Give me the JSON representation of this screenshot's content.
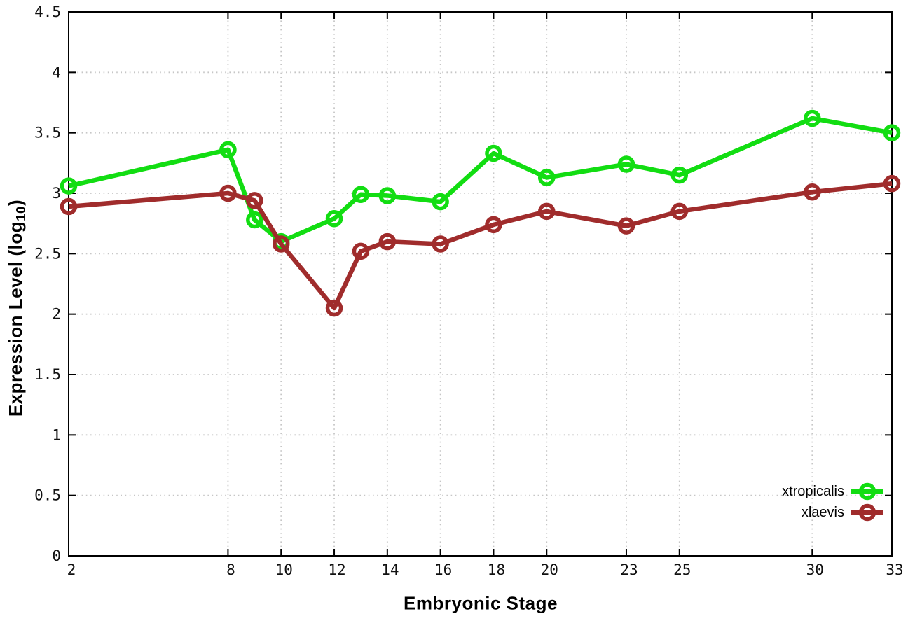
{
  "axes": {
    "xlabel": "Embryonic Stage",
    "ylabel_prefix": "Expression Level (log",
    "ylabel_sub": "10",
    "ylabel_suffix": ")"
  },
  "chart_data": {
    "type": "line",
    "title": "",
    "x": [
      2,
      8,
      9,
      10,
      12,
      13,
      14,
      16,
      18,
      20,
      23,
      25,
      30,
      33
    ],
    "series": [
      {
        "name": "xtropicalis",
        "color": "#12dd12",
        "values": [
          3.06,
          3.36,
          2.78,
          2.6,
          2.79,
          2.99,
          2.98,
          2.93,
          3.33,
          3.13,
          3.24,
          3.15,
          3.62,
          3.5
        ]
      },
      {
        "name": "xlaevis",
        "color": "#a02c2c",
        "values": [
          2.89,
          3.0,
          2.94,
          2.58,
          2.05,
          2.52,
          2.6,
          2.58,
          2.74,
          2.85,
          2.73,
          2.85,
          3.01,
          3.08
        ]
      }
    ],
    "xlabel": "Embryonic Stage",
    "ylabel": "Expression Level (log10)",
    "xlim": [
      2,
      33
    ],
    "ylim": [
      0,
      4.5
    ],
    "xticks": [
      2,
      8,
      10,
      12,
      14,
      16,
      18,
      20,
      23,
      25,
      30,
      33
    ],
    "yticks": [
      0,
      0.5,
      1,
      1.5,
      2,
      2.5,
      3,
      3.5,
      4,
      4.5
    ],
    "grid": true,
    "legend_position": "bottom-right",
    "marker": "open-circle",
    "colors": {
      "grid": "#c6c6c6",
      "axis": "#000000",
      "tick_text": "#111111"
    }
  }
}
